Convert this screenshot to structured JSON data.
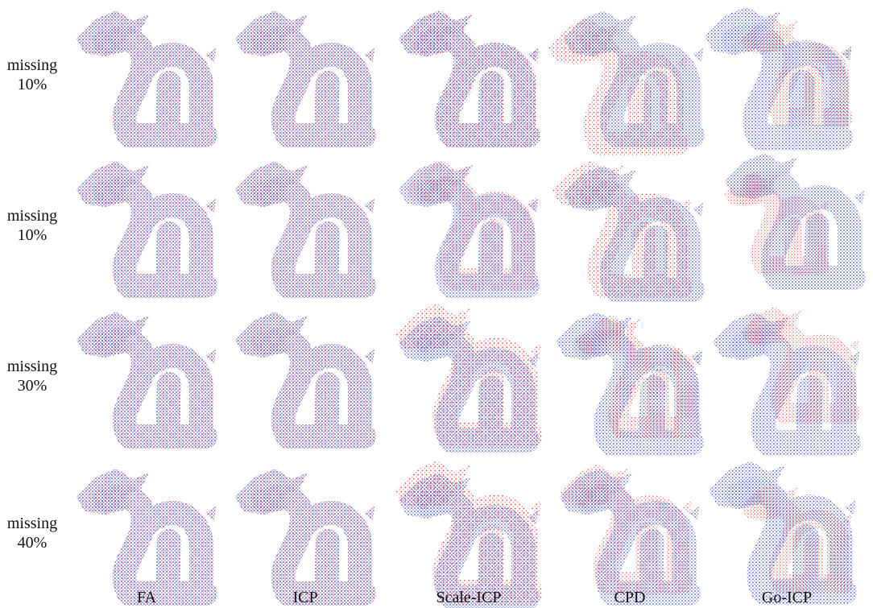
{
  "rows": [
    {
      "line1": "missing",
      "line2": "10%"
    },
    {
      "line1": "missing",
      "line2": "10%"
    },
    {
      "line1": "missing",
      "line2": "30%"
    },
    {
      "line1": "missing",
      "line2": "40%"
    }
  ],
  "columns": [
    "FA",
    "ICP",
    "Scale-ICP",
    "CPD",
    "Go-ICP"
  ]
}
